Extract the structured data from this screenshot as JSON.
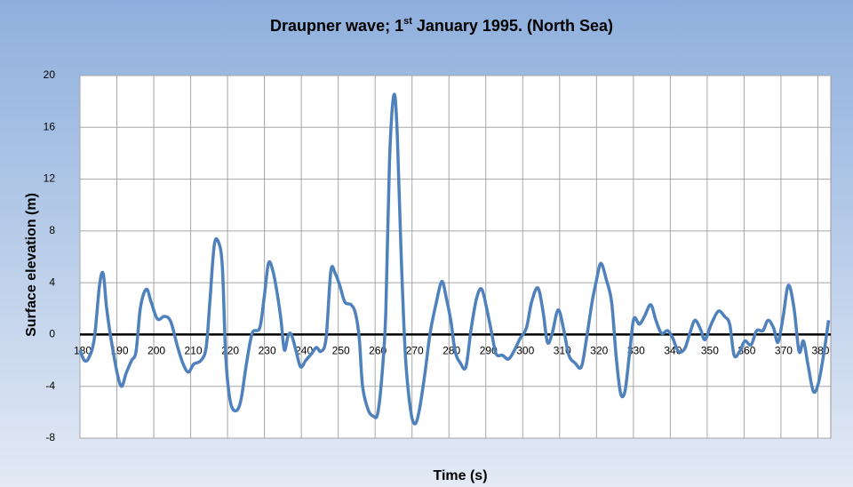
{
  "chart_data": {
    "type": "line",
    "title": [
      "Draupner wave; 1",
      "st",
      " January 1995. (North Sea)"
    ],
    "x_label": "Time (s)",
    "y_label": "Surface elevation (m)",
    "x": [
      180,
      181.2,
      182.4,
      183.9,
      185.3,
      186.3,
      187.2,
      188.4,
      190.1,
      191.3,
      192.5,
      194,
      195.2,
      196.4,
      198,
      199.3,
      201,
      202.9,
      204.6,
      206.5,
      208,
      209.4,
      210.8,
      212.8,
      214.2,
      215.2,
      216.4,
      217.6,
      218.6,
      219.5,
      220.7,
      222.2,
      223.6,
      225.1,
      226.7,
      228.7,
      229.9,
      231.1,
      232.3,
      233.5,
      234.5,
      235.4,
      236.4,
      237.3,
      238.6,
      239.8,
      241.2,
      242.7,
      244.1,
      245.3,
      246.7,
      248,
      249.2,
      250.4,
      251.8,
      253.5,
      254.7,
      255.7,
      256.6,
      258.1,
      259.5,
      260.7,
      261.9,
      262.9,
      263.9,
      265.1,
      266,
      267,
      268.2,
      269.6,
      270.8,
      272,
      273.5,
      274.9,
      276.6,
      278.1,
      279.3,
      280.5,
      281.7,
      283.1,
      284.6,
      286,
      287.5,
      288.9,
      290.4,
      291.6,
      292.8,
      294.5,
      296.1,
      297.6,
      299.3,
      301,
      302.4,
      304.1,
      305.5,
      306.7,
      308,
      309.6,
      311.1,
      312.5,
      314.2,
      315.9,
      317.3,
      318.8,
      320,
      321.2,
      322.7,
      324.1,
      325.3,
      326.5,
      327.7,
      328.9,
      330.1,
      331.6,
      333,
      334.7,
      336.1,
      337.6,
      339.3,
      340.7,
      342.2,
      343.9,
      345.3,
      346.7,
      348.2,
      349.4,
      351.1,
      353,
      354.7,
      356.1,
      357.3,
      358.8,
      360.2,
      361.9,
      363.4,
      365.1,
      366.5,
      368,
      369.2,
      370.6,
      372,
      373.5,
      374.9,
      376.1,
      377.3,
      378.8,
      380.2,
      381.7,
      382.9
    ],
    "values": [
      -1.2,
      -2,
      -1.8,
      -0.3,
      3.8,
      4.7,
      2.1,
      -0.3,
      -3,
      -4,
      -3,
      -2,
      -1.3,
      2.1,
      3.5,
      2.5,
      1.2,
      1.4,
      1,
      -1,
      -2.3,
      -2.9,
      -2.3,
      -2,
      -1,
      2.5,
      6.9,
      7.1,
      5.2,
      -1.6,
      -5.1,
      -5.9,
      -5.1,
      -2.3,
      0.1,
      0.5,
      2.8,
      5.5,
      4.9,
      3.1,
      1.1,
      -1.2,
      -0.1,
      0,
      -1.3,
      -2.5,
      -2,
      -1.5,
      -1,
      -1.3,
      -0.3,
      4.9,
      4.7,
      3.8,
      2.5,
      2.3,
      1.6,
      -0.3,
      -4,
      -5.8,
      -6.3,
      -6.1,
      -3,
      1.8,
      13.4,
      18.5,
      15.5,
      6.6,
      -1.6,
      -5.8,
      -6.9,
      -5.8,
      -3,
      0.1,
      2.5,
      4.1,
      2.8,
      1.1,
      -1.3,
      -2.2,
      -2.5,
      0.4,
      2.8,
      3.5,
      1.8,
      0.1,
      -1.5,
      -1.6,
      -1.9,
      -1.3,
      -0.3,
      0.5,
      2.5,
      3.6,
      1.8,
      -0.6,
      0.1,
      1.9,
      0.4,
      -1.6,
      -2.2,
      -2.5,
      -0.3,
      2.5,
      4.2,
      5.5,
      4.2,
      2.5,
      -1.6,
      -4.5,
      -4.4,
      -1.6,
      1.2,
      0.8,
      1.4,
      2.3,
      1.1,
      0.1,
      0.3,
      -0.3,
      -1.3,
      -1.1,
      0.1,
      1.1,
      0.4,
      -0.4,
      0.8,
      1.8,
      1.4,
      0.8,
      -1.6,
      -1.3,
      -0.5,
      -0.8,
      0.3,
      0.3,
      1.1,
      0.5,
      -0.6,
      1.4,
      3.8,
      2.1,
      -1.3,
      -0.5,
      -2.3,
      -4.4,
      -3.7,
      -1.3,
      1.1
    ],
    "color": "#4f81bd",
    "xlim": [
      180,
      383.5
    ],
    "xticks": [
      180,
      190,
      200,
      210,
      220,
      230,
      240,
      250,
      260,
      270,
      280,
      290,
      300,
      310,
      320,
      330,
      340,
      350,
      360,
      370,
      380
    ],
    "ylim": [
      -8,
      20
    ],
    "yticks": [
      -8,
      -4,
      0,
      4,
      8,
      12,
      16,
      20
    ],
    "grid": true,
    "zero_line": true
  }
}
